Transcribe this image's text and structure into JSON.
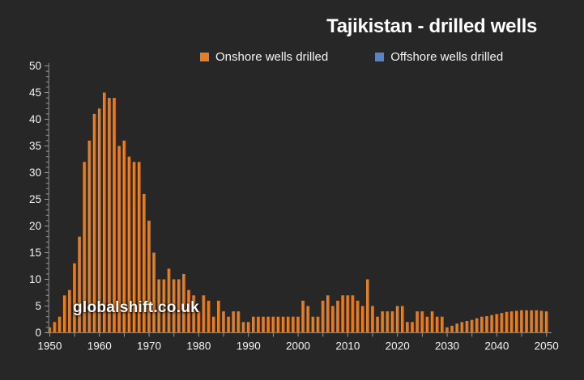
{
  "header": {
    "title": "Tajikistan - drilled wells"
  },
  "watermark": {
    "text": "globalshift.co.uk"
  },
  "legend": {
    "items": [
      {
        "label": "Onshore wells drilled",
        "color": "#E87D22"
      },
      {
        "label": "Offshore wells drilled",
        "color": "#5585C6"
      }
    ]
  },
  "colors": {
    "background": "#272727",
    "axis": "#808080",
    "tick": "#9a9a9a",
    "label_text": "#f2f2f2",
    "onshore_bar": "#E87D22",
    "onshore_bar_light": "#F08C33",
    "onshore_bar_dark": "#C76A12",
    "offshore_bar": "#5585C6",
    "title_text": "#ffffff"
  },
  "chart_data": {
    "type": "bar",
    "title": "Tajikistan - drilled wells",
    "xlabel": "",
    "ylabel": "",
    "x_start": 1950,
    "x_end": 2050,
    "ylim": [
      0,
      50
    ],
    "ytick_labels": [
      0,
      5,
      10,
      15,
      20,
      25,
      30,
      35,
      40,
      45,
      50
    ],
    "ytick_minor_step": 1,
    "xtick_labels": [
      1950,
      1960,
      1970,
      1980,
      1990,
      2000,
      2010,
      2020,
      2030,
      2040,
      2050
    ],
    "xtick_minor_step": 5,
    "grid": false,
    "legend_position": "top",
    "series": [
      {
        "name": "Onshore wells drilled",
        "values": [
          1,
          2,
          3,
          7,
          8,
          13,
          18,
          32,
          36,
          41,
          42,
          45,
          44,
          44,
          35,
          36,
          33,
          32,
          32,
          26,
          21,
          15,
          10,
          10,
          12,
          10,
          10,
          11,
          8,
          7,
          4,
          7,
          6,
          3,
          6,
          4,
          3,
          4,
          4,
          2,
          2,
          3,
          3,
          3,
          3,
          3,
          3,
          3,
          3,
          3,
          3,
          6,
          5,
          3,
          3,
          6,
          7,
          5,
          6,
          7,
          7,
          7,
          6,
          5,
          10,
          5,
          3,
          4,
          4,
          4,
          5,
          5,
          2,
          2,
          4,
          4,
          3,
          4,
          3,
          3,
          1,
          1.3,
          1.7,
          2,
          2.2,
          2.4,
          2.7,
          3,
          3.1,
          3.3,
          3.5,
          3.7,
          3.9,
          4,
          4.1,
          4.2,
          4.2,
          4.2,
          4.2,
          4.1,
          4
        ]
      },
      {
        "name": "Offshore wells drilled",
        "values_note": "all zero 1950-2050 (no offshore bars visible)"
      }
    ]
  }
}
